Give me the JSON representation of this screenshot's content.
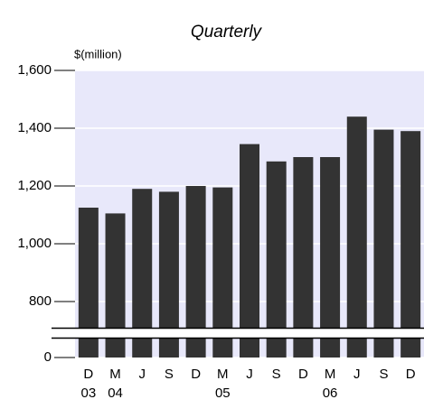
{
  "chart_data": {
    "type": "bar",
    "subtitle": "Quarterly",
    "y_label": "$(million)",
    "categories": [
      "D",
      "M",
      "J",
      "S",
      "D",
      "M",
      "J",
      "S",
      "D",
      "M",
      "J",
      "S",
      "D"
    ],
    "years": [
      "03",
      "04",
      null,
      null,
      null,
      "05",
      null,
      null,
      null,
      "06",
      null,
      null,
      null
    ],
    "values": [
      1125,
      1105,
      1190,
      1180,
      1200,
      1195,
      1345,
      1285,
      1300,
      1300,
      1440,
      1395,
      1390
    ],
    "color": "#333333",
    "background": "#e8e8fa",
    "ylim": [
      0,
      1600
    ],
    "ybreak": [
      100,
      700
    ],
    "yticks": [
      0,
      800,
      {
        "value": 1000,
        "label": "1,000"
      },
      {
        "value": 1200,
        "label": "1,200"
      },
      {
        "value": 1400,
        "label": "1,400"
      },
      {
        "value": 1600,
        "label": "1,600"
      }
    ],
    "grid": true
  }
}
